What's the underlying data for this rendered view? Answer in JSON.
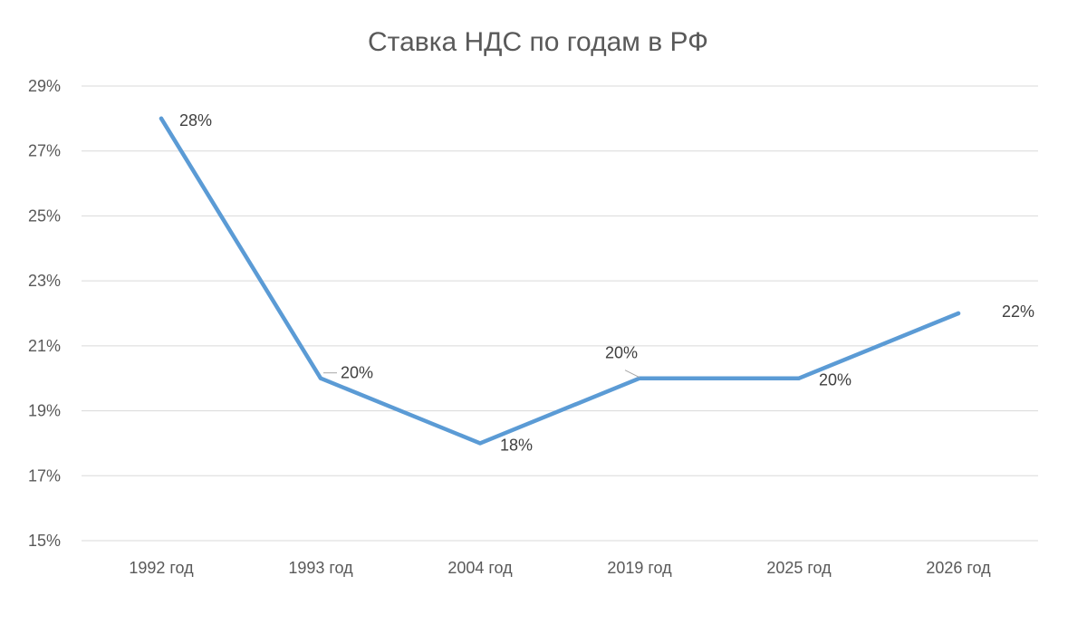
{
  "chart_data": {
    "type": "line",
    "title": "Ставка НДС по годам в РФ",
    "xlabel": "",
    "ylabel": "",
    "categories": [
      "1992 год",
      "1993 год",
      "2004 год",
      "2019 год",
      "2025 год",
      "2026 год"
    ],
    "values": [
      28,
      20,
      18,
      20,
      20,
      22
    ],
    "data_labels": [
      "28%",
      "20%",
      "18%",
      "20%",
      "20%",
      "22%"
    ],
    "y_ticks": [
      "15%",
      "17%",
      "19%",
      "21%",
      "23%",
      "25%",
      "27%",
      "29%"
    ],
    "ylim": [
      15,
      29
    ],
    "y_step": 2,
    "grid": true,
    "legend": "none",
    "line_color": "#5b9bd5"
  }
}
